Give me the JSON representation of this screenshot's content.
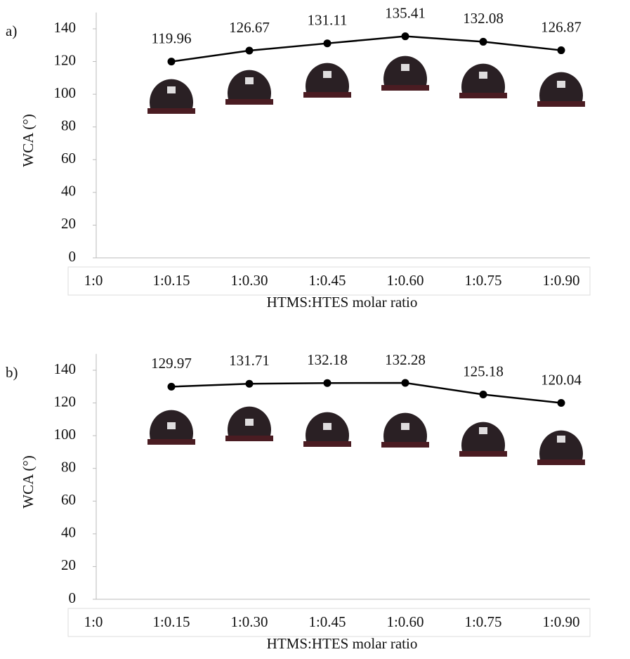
{
  "chart_data": [
    {
      "type": "line",
      "label": "a)",
      "ylabel": "WCA (°)",
      "xlabel": "HTMS:HTES  molar ratio",
      "categories": [
        "1:0",
        "1:0.15",
        "1:0.30",
        "1:0.45",
        "1:0.60",
        "1:0.75",
        "1:0.90"
      ],
      "series": [
        {
          "color": "#000000",
          "values": [
            null,
            119.96,
            126.67,
            131.11,
            135.41,
            132.08,
            126.87
          ]
        }
      ],
      "ylim": [
        0,
        150
      ],
      "yticks": [
        0,
        20,
        40,
        60,
        80,
        100,
        120,
        140
      ]
    },
    {
      "type": "line",
      "label": "b)",
      "ylabel": "WCA (°)",
      "xlabel": "HTMS:HTES  molar ratio",
      "categories": [
        "1:0",
        "1:0.15",
        "1:0.30",
        "1:0.45",
        "1:0.60",
        "1:0.75",
        "1:0.90"
      ],
      "series": [
        {
          "color": "#000000",
          "values": [
            null,
            129.97,
            131.71,
            132.18,
            132.28,
            125.18,
            120.04
          ]
        }
      ],
      "ylim": [
        0,
        150
      ],
      "yticks": [
        0,
        20,
        40,
        60,
        80,
        100,
        120,
        140
      ]
    }
  ]
}
